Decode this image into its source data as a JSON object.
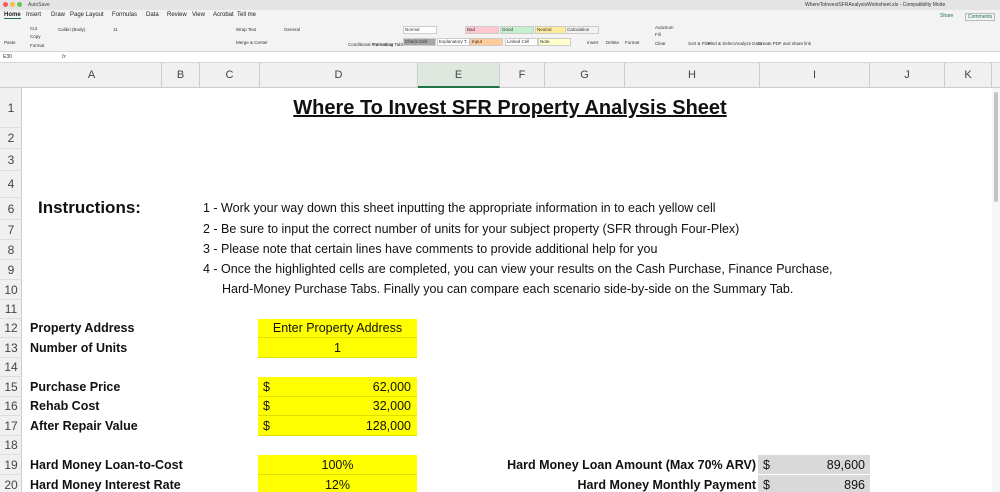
{
  "window": {
    "autosave": "AutoSave",
    "file_name": "WhereToInvestSFRAnalysisWorksheet.xls - Compatibility Mode"
  },
  "tabs": [
    "Home",
    "Insert",
    "Draw",
    "Page Layout",
    "Formulas",
    "Data",
    "Review",
    "View",
    "Acrobat",
    "Tell me"
  ],
  "share": "Share",
  "comments": "Comments",
  "ribbon": [
    "Paste",
    "Cut",
    "Copy",
    "Format",
    "Calibri (Body)",
    "11",
    "Wrap Text",
    "Merge & Center",
    "General",
    "Conditional Formatting",
    "Format as Table",
    "Normal",
    "Bad",
    "Good",
    "Neutral",
    "Calculation",
    "Check Cell",
    "Explanatory T...",
    "Input",
    "Linked Cell",
    "Note",
    "Insert",
    "Delete",
    "Format",
    "AutoSum",
    "Fill",
    "Clear",
    "Sort & Filter",
    "Find & Select",
    "Analyze Data",
    "Create PDF and share link"
  ],
  "name_box": "E30",
  "fx": "fx",
  "columns": [
    "A",
    "B",
    "C",
    "D",
    "E",
    "F",
    "G",
    "H",
    "I",
    "J",
    "K"
  ],
  "row_numbers": [
    1,
    2,
    3,
    4,
    6,
    7,
    8,
    9,
    10,
    11,
    12,
    13,
    14,
    15,
    16,
    17,
    18,
    19,
    20
  ],
  "sheet": {
    "title": "Where To Invest SFR  Property Analysis Sheet",
    "instructions_label": "Instructions:",
    "instructions": [
      "1 - Work your way down this sheet inputting the appropriate information in to each yellow cell",
      "2 - Be sure to input the correct number of units for your subject property (SFR through Four-Plex)",
      "3 - Please note that certain lines have comments to provide additional help for you",
      "4 - Once the highlighted cells are completed, you can view your results on the Cash Purchase, Finance Purchase,",
      "Hard-Money Purchase Tabs.  Finally you can compare each scenario side-by-side on the Summary Tab."
    ],
    "fields": [
      {
        "row": 12,
        "label": "Property Address",
        "value": "Enter Property Address"
      },
      {
        "row": 13,
        "label": "Number of Units",
        "value": "1"
      },
      {
        "row": 15,
        "label": "Purchase Price",
        "currency": "$",
        "value": "62,000"
      },
      {
        "row": 16,
        "label": "Rehab Cost",
        "currency": "$",
        "value": "32,000"
      },
      {
        "row": 17,
        "label": "After Repair Value",
        "currency": "$",
        "value": "128,000"
      },
      {
        "row": 19,
        "label": "Hard Money Loan-to-Cost",
        "value": "100%"
      },
      {
        "row": 20,
        "label": "Hard Money Interest Rate",
        "value": "12%"
      }
    ],
    "results": [
      {
        "row": 19,
        "label": "Hard Money Loan Amount (Max 70% ARV)",
        "currency": "$",
        "value": "89,600"
      },
      {
        "row": 20,
        "label": "Hard Money Monthly Payment",
        "currency": "$",
        "value": "896"
      }
    ]
  }
}
